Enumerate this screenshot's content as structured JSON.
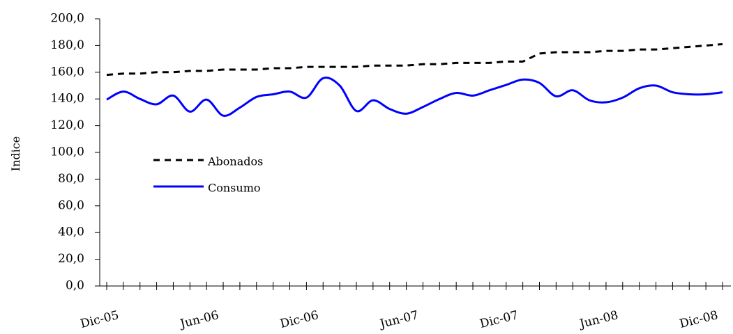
{
  "chart_data": {
    "type": "line",
    "title": "",
    "xlabel": "",
    "ylabel": "Indice",
    "ylim": [
      0,
      200
    ],
    "y_ticks": [
      "0,0",
      "20,0",
      "40,0",
      "60,0",
      "80,0",
      "100,0",
      "120,0",
      "140,0",
      "160,0",
      "180,0",
      "200,0"
    ],
    "x_tick_labels": [
      "Dic-05",
      "Jun-06",
      "Dic-06",
      "Jun-07",
      "Dic-07",
      "Jun-08",
      "Dic-08"
    ],
    "x": [
      "Dic-05",
      "Ene-06",
      "Feb-06",
      "Mar-06",
      "Abr-06",
      "May-06",
      "Jun-06",
      "Jul-06",
      "Ago-06",
      "Sep-06",
      "Oct-06",
      "Nov-06",
      "Dic-06",
      "Ene-07",
      "Feb-07",
      "Mar-07",
      "Abr-07",
      "May-07",
      "Jun-07",
      "Jul-07",
      "Ago-07",
      "Sep-07",
      "Oct-07",
      "Nov-07",
      "Dic-07",
      "Ene-08",
      "Feb-08",
      "Mar-08",
      "Abr-08",
      "May-08",
      "Jun-08",
      "Jul-08",
      "Ago-08",
      "Sep-08",
      "Oct-08",
      "Nov-08",
      "Dic-08",
      "Ene-09"
    ],
    "grid": false,
    "legend_position": "middle-left",
    "series": [
      {
        "name": "Abonados",
        "style": "dashed",
        "color": "#000000",
        "values": [
          158,
          159,
          159,
          160,
          160,
          161,
          161,
          162,
          162,
          162,
          163,
          163,
          164,
          164,
          164,
          164,
          165,
          165,
          165,
          166,
          166,
          167,
          167,
          167,
          168,
          168,
          174,
          175,
          175,
          175,
          176,
          176,
          177,
          177,
          178,
          179,
          180,
          181
        ]
      },
      {
        "name": "Consumo",
        "style": "solid",
        "color": "#0000ff",
        "values": [
          139.5,
          145.5,
          140,
          136,
          142.5,
          130.5,
          139.5,
          127.5,
          133.5,
          141.5,
          143.5,
          145.5,
          141,
          155.5,
          150,
          131,
          139,
          132.5,
          129,
          134,
          140,
          144.5,
          142.5,
          146.5,
          150.5,
          154.5,
          152,
          142,
          146.5,
          139,
          137.5,
          141,
          148,
          150,
          145,
          143.5,
          143.5,
          145
        ]
      }
    ]
  }
}
